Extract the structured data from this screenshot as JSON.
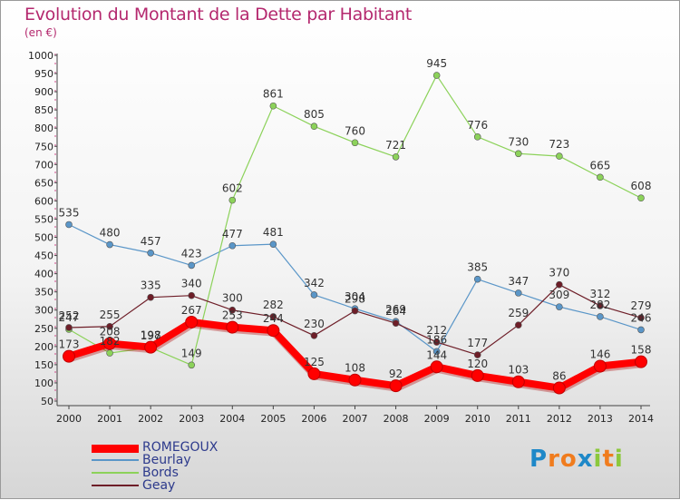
{
  "title": "Evolution du Montant de la Dette par Habitant",
  "unit": "(en €)",
  "chart_data": {
    "type": "line",
    "x": [
      "2000",
      "2001",
      "2002",
      "2003",
      "2004",
      "2005",
      "2006",
      "2007",
      "2008",
      "2009",
      "2010",
      "2011",
      "2012",
      "2013",
      "2014"
    ],
    "ylim": [
      50,
      1000
    ],
    "yticks": [
      50,
      100,
      150,
      200,
      250,
      300,
      350,
      400,
      450,
      500,
      550,
      600,
      650,
      700,
      750,
      800,
      850,
      900,
      950,
      1000
    ],
    "grid": false,
    "legend_position": "bottom-left",
    "series": [
      {
        "name": "ROMEGOUX",
        "color": "#ff0000",
        "values": [
          173,
          208,
          198,
          267,
          253,
          244,
          125,
          108,
          92,
          144,
          120,
          103,
          86,
          146,
          158
        ]
      },
      {
        "name": "Beurlay",
        "color": "#5a96c8",
        "values": [
          535,
          480,
          457,
          423,
          477,
          481,
          342,
          304,
          269,
          186,
          385,
          347,
          309,
          282,
          246
        ]
      },
      {
        "name": "Bords",
        "color": "#8cd25a",
        "values": [
          247,
          182,
          197,
          149,
          602,
          861,
          805,
          760,
          721,
          945,
          776,
          730,
          723,
          665,
          608
        ]
      },
      {
        "name": "Geay",
        "color": "#6e1e28",
        "values": [
          252,
          255,
          335,
          340,
          300,
          282,
          230,
          298,
          264,
          212,
          177,
          259,
          370,
          312,
          279
        ]
      }
    ]
  },
  "logo": {
    "letters": [
      "P",
      "r",
      "o",
      "x",
      "i",
      "t",
      "i"
    ],
    "colors": [
      "#1e88c8",
      "#f07c1e",
      "#f07c1e",
      "#1e88c8",
      "#8cc83c",
      "#f07c1e",
      "#8cc83c"
    ]
  }
}
